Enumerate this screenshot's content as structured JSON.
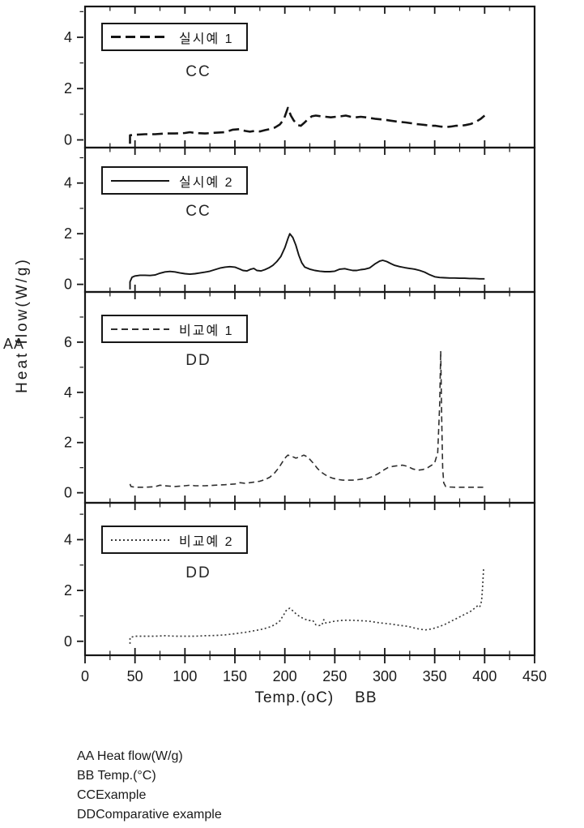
{
  "figure": {
    "y_axis_label": "Heat flow(W/g)",
    "y_axis_marker": "AA",
    "x_axis_label": "Temp.(oC)",
    "x_axis_marker": "BB",
    "x_ticks": [
      0,
      50,
      100,
      150,
      200,
      250,
      300,
      350,
      400,
      450
    ],
    "x_minor_step": 25,
    "xlim": [
      0,
      450
    ]
  },
  "footnotes": {
    "line1": "AA Heat flow(W/g)",
    "line2": "BB Temp.(°C)",
    "line3": "CCExample",
    "line4": "DDComparative example"
  },
  "chart_data": [
    {
      "type": "line",
      "legend": "실시예 1",
      "annotation": "CC",
      "line_style": "dashed-bold",
      "xlabel": "Temp.(oC)",
      "ylabel": "Heat flow(W/g)",
      "ylim": [
        -0.3,
        5.2
      ],
      "yticks": [
        0,
        2,
        4
      ],
      "points": [
        [
          45,
          -0.15
        ],
        [
          45,
          0.18
        ],
        [
          50,
          0.2
        ],
        [
          60,
          0.22
        ],
        [
          70,
          0.22
        ],
        [
          80,
          0.25
        ],
        [
          90,
          0.25
        ],
        [
          100,
          0.27
        ],
        [
          105,
          0.3
        ],
        [
          110,
          0.27
        ],
        [
          120,
          0.25
        ],
        [
          130,
          0.28
        ],
        [
          140,
          0.3
        ],
        [
          148,
          0.4
        ],
        [
          155,
          0.42
        ],
        [
          160,
          0.35
        ],
        [
          165,
          0.32
        ],
        [
          170,
          0.35
        ],
        [
          175,
          0.33
        ],
        [
          180,
          0.38
        ],
        [
          185,
          0.42
        ],
        [
          190,
          0.48
        ],
        [
          195,
          0.6
        ],
        [
          199,
          0.8
        ],
        [
          203,
          1.25
        ],
        [
          206,
          0.95
        ],
        [
          209,
          0.75
        ],
        [
          213,
          0.58
        ],
        [
          216,
          0.55
        ],
        [
          219,
          0.65
        ],
        [
          223,
          0.8
        ],
        [
          227,
          0.92
        ],
        [
          231,
          0.95
        ],
        [
          236,
          0.92
        ],
        [
          241,
          0.9
        ],
        [
          246,
          0.88
        ],
        [
          251,
          0.9
        ],
        [
          256,
          0.92
        ],
        [
          261,
          0.95
        ],
        [
          266,
          0.9
        ],
        [
          271,
          0.88
        ],
        [
          276,
          0.9
        ],
        [
          281,
          0.88
        ],
        [
          286,
          0.85
        ],
        [
          291,
          0.82
        ],
        [
          296,
          0.8
        ],
        [
          301,
          0.78
        ],
        [
          306,
          0.75
        ],
        [
          311,
          0.72
        ],
        [
          316,
          0.7
        ],
        [
          321,
          0.68
        ],
        [
          326,
          0.65
        ],
        [
          331,
          0.62
        ],
        [
          336,
          0.6
        ],
        [
          341,
          0.58
        ],
        [
          346,
          0.55
        ],
        [
          351,
          0.55
        ],
        [
          356,
          0.52
        ],
        [
          361,
          0.5
        ],
        [
          366,
          0.52
        ],
        [
          371,
          0.55
        ],
        [
          376,
          0.55
        ],
        [
          381,
          0.58
        ],
        [
          386,
          0.62
        ],
        [
          391,
          0.7
        ],
        [
          396,
          0.82
        ],
        [
          400,
          0.95
        ]
      ]
    },
    {
      "type": "line",
      "legend": "실시예 2",
      "annotation": "CC",
      "line_style": "solid",
      "xlabel": "Temp.(oC)",
      "ylabel": "Heat flow(W/g)",
      "ylim": [
        -0.3,
        5.4
      ],
      "yticks": [
        0,
        2,
        4
      ],
      "points": [
        [
          45,
          -0.2
        ],
        [
          45,
          0.1
        ],
        [
          47,
          0.28
        ],
        [
          50,
          0.33
        ],
        [
          55,
          0.36
        ],
        [
          60,
          0.36
        ],
        [
          65,
          0.35
        ],
        [
          70,
          0.37
        ],
        [
          75,
          0.44
        ],
        [
          80,
          0.49
        ],
        [
          85,
          0.51
        ],
        [
          90,
          0.49
        ],
        [
          95,
          0.45
        ],
        [
          100,
          0.42
        ],
        [
          105,
          0.4
        ],
        [
          110,
          0.42
        ],
        [
          115,
          0.45
        ],
        [
          120,
          0.48
        ],
        [
          125,
          0.52
        ],
        [
          130,
          0.58
        ],
        [
          135,
          0.64
        ],
        [
          140,
          0.68
        ],
        [
          145,
          0.7
        ],
        [
          150,
          0.68
        ],
        [
          155,
          0.6
        ],
        [
          158,
          0.55
        ],
        [
          162,
          0.53
        ],
        [
          166,
          0.6
        ],
        [
          169,
          0.63
        ],
        [
          172,
          0.55
        ],
        [
          176,
          0.53
        ],
        [
          180,
          0.58
        ],
        [
          184,
          0.65
        ],
        [
          188,
          0.75
        ],
        [
          192,
          0.9
        ],
        [
          196,
          1.1
        ],
        [
          200,
          1.45
        ],
        [
          203,
          1.8
        ],
        [
          205,
          2.0
        ],
        [
          208,
          1.85
        ],
        [
          211,
          1.55
        ],
        [
          214,
          1.15
        ],
        [
          217,
          0.85
        ],
        [
          220,
          0.68
        ],
        [
          225,
          0.6
        ],
        [
          230,
          0.55
        ],
        [
          235,
          0.52
        ],
        [
          240,
          0.5
        ],
        [
          245,
          0.5
        ],
        [
          250,
          0.52
        ],
        [
          255,
          0.6
        ],
        [
          260,
          0.62
        ],
        [
          264,
          0.58
        ],
        [
          268,
          0.55
        ],
        [
          272,
          0.55
        ],
        [
          276,
          0.58
        ],
        [
          280,
          0.6
        ],
        [
          285,
          0.65
        ],
        [
          290,
          0.8
        ],
        [
          295,
          0.92
        ],
        [
          298,
          0.95
        ],
        [
          302,
          0.9
        ],
        [
          306,
          0.82
        ],
        [
          310,
          0.75
        ],
        [
          315,
          0.7
        ],
        [
          320,
          0.66
        ],
        [
          325,
          0.63
        ],
        [
          330,
          0.6
        ],
        [
          335,
          0.55
        ],
        [
          340,
          0.48
        ],
        [
          345,
          0.38
        ],
        [
          350,
          0.3
        ],
        [
          355,
          0.27
        ],
        [
          360,
          0.26
        ],
        [
          365,
          0.25
        ],
        [
          370,
          0.25
        ],
        [
          375,
          0.24
        ],
        [
          380,
          0.24
        ],
        [
          385,
          0.23
        ],
        [
          390,
          0.23
        ],
        [
          395,
          0.22
        ],
        [
          400,
          0.22
        ]
      ]
    },
    {
      "type": "line",
      "legend": "비교예 1",
      "annotation": "DD",
      "line_style": "dashed",
      "xlabel": "Temp.(oC)",
      "ylabel": "Heat flow(W/g)",
      "ylim": [
        -0.4,
        8.0
      ],
      "yticks": [
        0,
        2,
        4,
        6
      ],
      "points": [
        [
          45,
          0.35
        ],
        [
          46,
          0.25
        ],
        [
          50,
          0.22
        ],
        [
          55,
          0.22
        ],
        [
          60,
          0.22
        ],
        [
          70,
          0.24
        ],
        [
          75,
          0.3
        ],
        [
          80,
          0.28
        ],
        [
          90,
          0.25
        ],
        [
          100,
          0.28
        ],
        [
          105,
          0.3
        ],
        [
          110,
          0.28
        ],
        [
          120,
          0.28
        ],
        [
          130,
          0.3
        ],
        [
          140,
          0.32
        ],
        [
          150,
          0.35
        ],
        [
          155,
          0.4
        ],
        [
          160,
          0.38
        ],
        [
          165,
          0.4
        ],
        [
          170,
          0.43
        ],
        [
          175,
          0.46
        ],
        [
          180,
          0.52
        ],
        [
          185,
          0.62
        ],
        [
          190,
          0.8
        ],
        [
          194,
          1.0
        ],
        [
          198,
          1.25
        ],
        [
          201,
          1.42
        ],
        [
          203,
          1.5
        ],
        [
          207,
          1.45
        ],
        [
          211,
          1.38
        ],
        [
          215,
          1.43
        ],
        [
          219,
          1.5
        ],
        [
          223,
          1.42
        ],
        [
          228,
          1.2
        ],
        [
          233,
          0.95
        ],
        [
          238,
          0.78
        ],
        [
          243,
          0.65
        ],
        [
          248,
          0.58
        ],
        [
          253,
          0.53
        ],
        [
          258,
          0.5
        ],
        [
          263,
          0.5
        ],
        [
          268,
          0.5
        ],
        [
          273,
          0.52
        ],
        [
          278,
          0.55
        ],
        [
          283,
          0.58
        ],
        [
          288,
          0.65
        ],
        [
          293,
          0.75
        ],
        [
          298,
          0.88
        ],
        [
          303,
          1.0
        ],
        [
          308,
          1.05
        ],
        [
          313,
          1.08
        ],
        [
          318,
          1.1
        ],
        [
          323,
          1.05
        ],
        [
          328,
          0.95
        ],
        [
          333,
          0.9
        ],
        [
          338,
          0.92
        ],
        [
          343,
          1.0
        ],
        [
          347,
          1.1
        ],
        [
          350,
          1.2
        ],
        [
          353,
          1.6
        ],
        [
          355,
          3.5
        ],
        [
          356,
          5.65
        ],
        [
          357,
          3.0
        ],
        [
          358,
          1.0
        ],
        [
          359,
          0.4
        ],
        [
          361,
          0.25
        ],
        [
          365,
          0.23
        ],
        [
          370,
          0.22
        ],
        [
          380,
          0.22
        ],
        [
          390,
          0.22
        ],
        [
          400,
          0.22
        ]
      ]
    },
    {
      "type": "line",
      "legend": "비교예 2",
      "annotation": "DD",
      "line_style": "dotted",
      "xlabel": "Temp.(oC)",
      "ylabel": "Heat flow(W/g)",
      "ylim": [
        -0.55,
        5.45
      ],
      "yticks": [
        0,
        2,
        4
      ],
      "points": [
        [
          45,
          -0.1
        ],
        [
          45,
          0.15
        ],
        [
          50,
          0.2
        ],
        [
          60,
          0.2
        ],
        [
          70,
          0.2
        ],
        [
          80,
          0.22
        ],
        [
          90,
          0.2
        ],
        [
          100,
          0.2
        ],
        [
          110,
          0.2
        ],
        [
          120,
          0.22
        ],
        [
          130,
          0.23
        ],
        [
          140,
          0.25
        ],
        [
          150,
          0.3
        ],
        [
          160,
          0.35
        ],
        [
          170,
          0.42
        ],
        [
          178,
          0.48
        ],
        [
          184,
          0.55
        ],
        [
          190,
          0.65
        ],
        [
          195,
          0.8
        ],
        [
          199,
          1.05
        ],
        [
          202,
          1.25
        ],
        [
          205,
          1.3
        ],
        [
          208,
          1.2
        ],
        [
          212,
          1.05
        ],
        [
          216,
          0.95
        ],
        [
          220,
          0.87
        ],
        [
          224,
          0.82
        ],
        [
          228,
          0.82
        ],
        [
          231,
          0.65
        ],
        [
          234,
          0.62
        ],
        [
          237,
          0.63
        ],
        [
          239,
          0.85
        ],
        [
          241,
          0.72
        ],
        [
          244,
          0.74
        ],
        [
          248,
          0.78
        ],
        [
          252,
          0.8
        ],
        [
          256,
          0.82
        ],
        [
          261,
          0.83
        ],
        [
          266,
          0.83
        ],
        [
          271,
          0.82
        ],
        [
          276,
          0.81
        ],
        [
          281,
          0.8
        ],
        [
          286,
          0.78
        ],
        [
          291,
          0.75
        ],
        [
          296,
          0.72
        ],
        [
          301,
          0.7
        ],
        [
          306,
          0.68
        ],
        [
          311,
          0.65
        ],
        [
          316,
          0.62
        ],
        [
          321,
          0.6
        ],
        [
          326,
          0.56
        ],
        [
          331,
          0.51
        ],
        [
          336,
          0.47
        ],
        [
          341,
          0.45
        ],
        [
          346,
          0.48
        ],
        [
          351,
          0.53
        ],
        [
          356,
          0.6
        ],
        [
          361,
          0.68
        ],
        [
          366,
          0.78
        ],
        [
          371,
          0.88
        ],
        [
          376,
          0.98
        ],
        [
          381,
          1.08
        ],
        [
          386,
          1.18
        ],
        [
          390,
          1.3
        ],
        [
          393,
          1.4
        ],
        [
          395,
          1.35
        ],
        [
          396,
          1.45
        ],
        [
          397,
          1.6
        ],
        [
          398,
          2.2
        ],
        [
          399,
          2.9
        ]
      ]
    }
  ]
}
